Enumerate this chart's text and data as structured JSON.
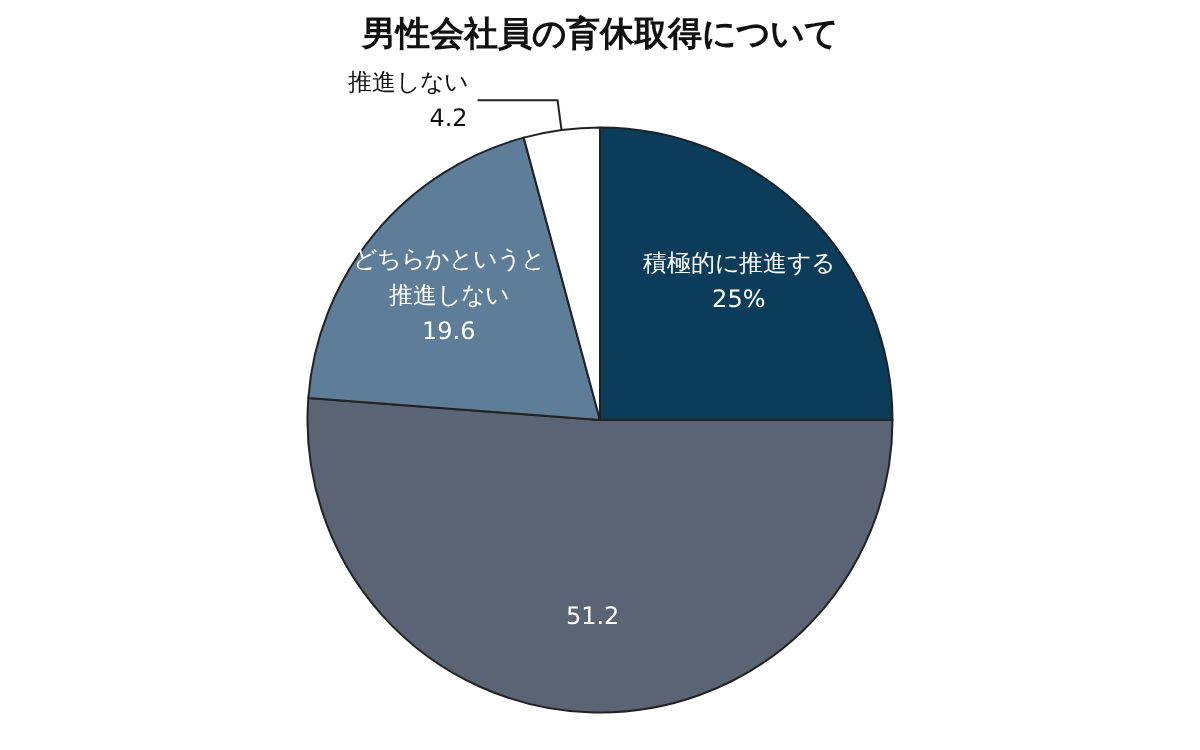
{
  "chart_data": {
    "type": "pie",
    "title": "男性会社員の育休取得について",
    "categories": [
      "積極的に推進する",
      null,
      "どちらかというと推進しない",
      "推進しない"
    ],
    "values": [
      25,
      51.2,
      19.6,
      4.2
    ],
    "value_labels": [
      "25%",
      "51.2",
      "19.6",
      "4.2"
    ],
    "colors": [
      "#0b3d5a",
      "#5b6474",
      "#5e7d98",
      "#ffffff"
    ],
    "legend": false
  }
}
